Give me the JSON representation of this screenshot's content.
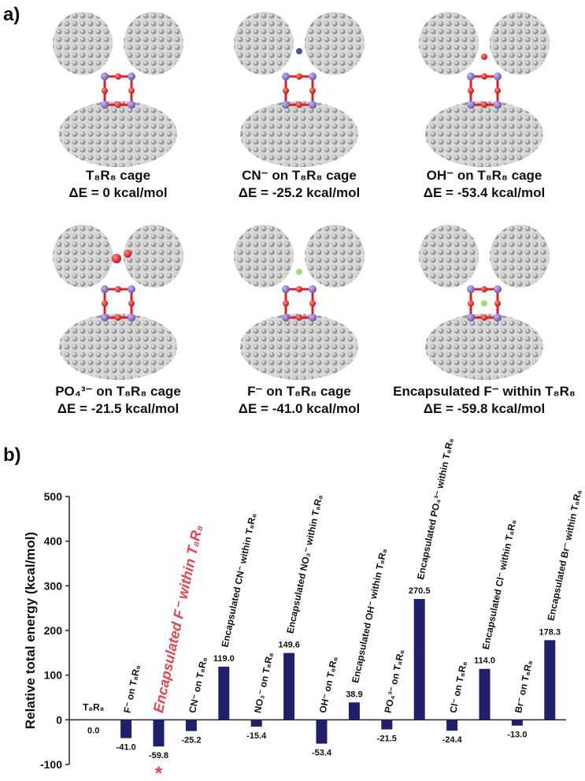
{
  "panel_a": {
    "label": "a)",
    "structures": [
      {
        "name": "T₈R₈ cage",
        "energy": "ΔE = 0 kcal/mol"
      },
      {
        "name": "CN⁻ on T₈R₈ cage",
        "energy": "ΔE = -25.2 kcal/mol"
      },
      {
        "name": "OH⁻ on T₈R₈ cage",
        "energy": "ΔE = -53.4 kcal/mol"
      },
      {
        "name": "PO₄³⁻ on T₈R₈ cage",
        "energy": "ΔE = -21.5 kcal/mol"
      },
      {
        "name": "F⁻ on T₈R₈ cage",
        "energy": "ΔE = -41.0 kcal/mol"
      },
      {
        "name": "Encapsulated F⁻ within T₈R₈",
        "energy": "ΔE = -59.8 kcal/mol"
      }
    ]
  },
  "chart_data": {
    "type": "bar",
    "panel_label": "b)",
    "y_label": "Relative total energy (kcal/mol)",
    "categories": [
      "T₈R₈",
      "F⁻ on T₈R₈",
      "Encapsulated F⁻ within T₈R₈",
      "CN⁻ on T₈R₈",
      "Encapsulated CN⁻ within T₈R₈",
      "NO₃⁻ on T₈R₈",
      "Encapsulated NO₃⁻ within T₈R₈",
      "OH⁻ on T₈R₈",
      "Encapsulated OH⁻ within T₈R₈",
      "PO₄³⁻ on T₈R₈",
      "Encapsulated PO₄³⁻ within T₈R₈",
      "Cl⁻ on T₈R₈",
      "Encapsulated Cl⁻ within T₈R₈",
      "Br⁻ on T₈R₈",
      "Encapsulated Br⁻ within T₈R₈"
    ],
    "values": [
      0,
      -41.0,
      -59.8,
      -25.2,
      119.0,
      -15.4,
      149.6,
      -53.4,
      38.9,
      -21.5,
      270.5,
      -24.4,
      114.0,
      -13.0,
      178.3
    ],
    "value_labels": [
      "0.0",
      "-41.0",
      "-59.8",
      "-25.2",
      "119.0",
      "-15.4",
      "149.6",
      "-53.4",
      "38.9",
      "-21.5",
      "270.5",
      "-24.4",
      "114.0",
      "-13.0",
      "178.3"
    ],
    "color": "#1f1f6b",
    "highlight": {
      "index": 2,
      "color": "#e8424f",
      "marker": "*"
    },
    "ylim": [
      -100,
      500
    ],
    "yticks": [
      -100,
      0,
      100,
      200,
      300,
      400,
      500
    ],
    "grid": false
  }
}
